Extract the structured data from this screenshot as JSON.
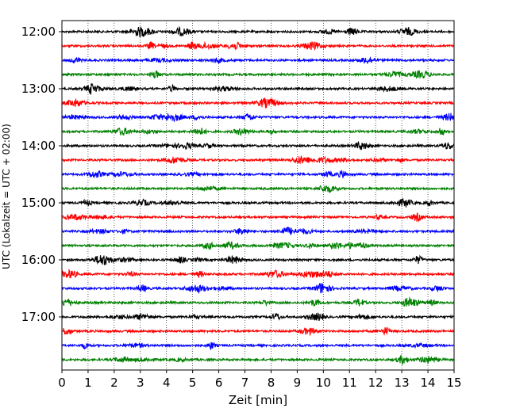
{
  "chart_data": {
    "type": "line",
    "title": "",
    "xlabel": "Zeit  [min]",
    "ylabel": "UTC (Lokalzeit = UTC + 02:00)",
    "xlim": [
      0,
      15
    ],
    "x_ticks": [
      0,
      1,
      2,
      3,
      4,
      5,
      6,
      7,
      8,
      9,
      10,
      11,
      12,
      13,
      14,
      15
    ],
    "y_ticks": [
      {
        "label": "12:00",
        "row": 0
      },
      {
        "label": "13:00",
        "row": 4
      },
      {
        "label": "14:00",
        "row": 8
      },
      {
        "label": "15:00",
        "row": 12
      },
      {
        "label": "16:00",
        "row": 16
      },
      {
        "label": "17:00",
        "row": 20
      }
    ],
    "row_interval_minutes": 15,
    "start_time": "12:00",
    "row_count": 24,
    "color_cycle": [
      "#000000",
      "#ff0000",
      "#0000ff",
      "#008000"
    ],
    "grid": "vertical-dotted",
    "series_description": "seismogram traces, one 15-minute trace per row"
  }
}
